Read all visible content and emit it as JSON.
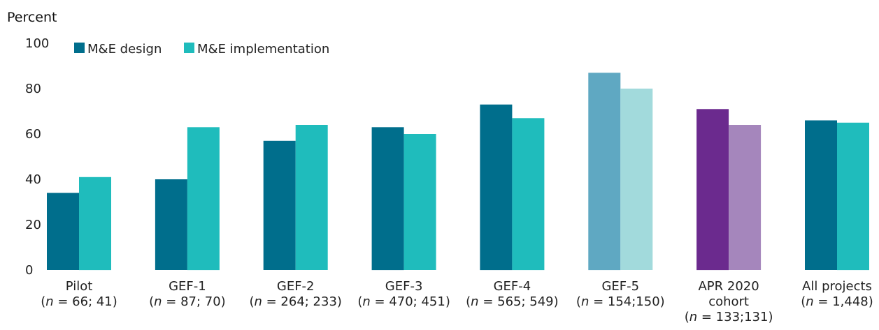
{
  "chart_data": {
    "type": "bar",
    "ylabel": "Percent",
    "ylim": [
      0,
      100
    ],
    "yticks": [
      0,
      20,
      40,
      60,
      80,
      100
    ],
    "categories": [
      {
        "lines": [
          {
            "text": "Pilot"
          },
          {
            "parts": [
              "(",
              "n",
              " = 66; 41)"
            ]
          }
        ]
      },
      {
        "lines": [
          {
            "text": "GEF-1"
          },
          {
            "parts": [
              "(",
              "n",
              " = 87; 70)"
            ]
          }
        ]
      },
      {
        "lines": [
          {
            "text": "GEF-2"
          },
          {
            "parts": [
              "(",
              "n",
              " = 264; 233)"
            ]
          }
        ]
      },
      {
        "lines": [
          {
            "text": "GEF-3"
          },
          {
            "parts": [
              "(",
              "n",
              " = 470; 451)"
            ]
          }
        ]
      },
      {
        "lines": [
          {
            "text": "GEF-4"
          },
          {
            "parts": [
              "(",
              "n",
              " = 565; 549)"
            ]
          }
        ]
      },
      {
        "lines": [
          {
            "text": "GEF-5"
          },
          {
            "parts": [
              "(",
              "n",
              " = 154;150)"
            ]
          }
        ]
      },
      {
        "lines": [
          {
            "text": "APR 2020"
          },
          {
            "text": "cohort"
          },
          {
            "parts": [
              "(",
              "n",
              " = 133;131)"
            ]
          }
        ]
      },
      {
        "lines": [
          {
            "text": "All projects"
          },
          {
            "parts": [
              "(",
              "n",
              " = 1,448)"
            ]
          }
        ]
      }
    ],
    "series": [
      {
        "name": "M&E design",
        "color": "#006E8C",
        "values": [
          34,
          40,
          57,
          63,
          73,
          87,
          71,
          66
        ],
        "colors": [
          "#006E8C",
          "#006E8C",
          "#006E8C",
          "#006E8C",
          "#006E8C",
          "#5FA8C2",
          "#6B2A8E",
          "#006E8C"
        ]
      },
      {
        "name": "M&E implementation",
        "color": "#1FBCBC",
        "values": [
          41,
          63,
          64,
          60,
          67,
          80,
          64,
          65
        ],
        "colors": [
          "#1FBCBC",
          "#1FBCBC",
          "#1FBCBC",
          "#1FBCBC",
          "#1FBCBC",
          "#A2DADC",
          "#A586BC",
          "#1FBCBC"
        ]
      }
    ],
    "legend": "top-left"
  }
}
